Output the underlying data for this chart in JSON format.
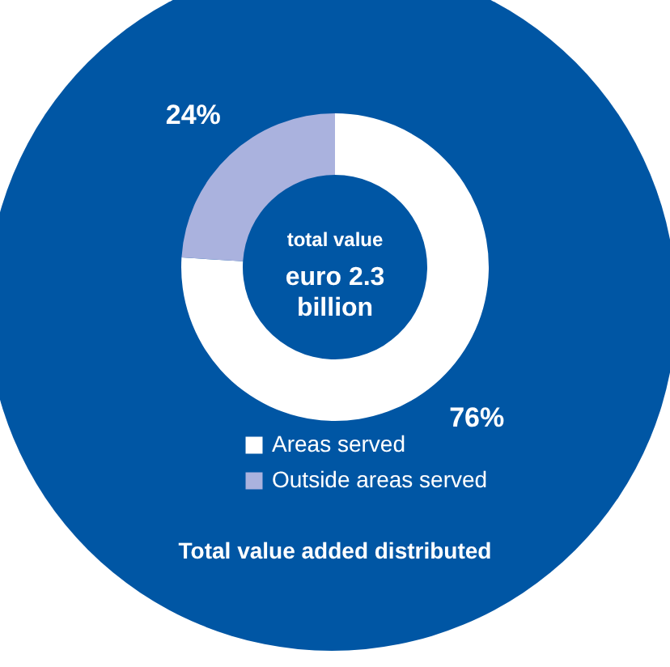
{
  "chart_data": {
    "type": "donut",
    "title": "Total value added distributed",
    "categories": [
      "Areas served",
      "Outside areas served"
    ],
    "values": [
      76,
      24
    ],
    "colors": [
      "#ffffff",
      "#aab2de"
    ],
    "value_labels": [
      "76%",
      "24%"
    ],
    "legend": "bottom",
    "annotations": [
      "total value",
      "euro 2.3",
      "billion"
    ]
  }
}
